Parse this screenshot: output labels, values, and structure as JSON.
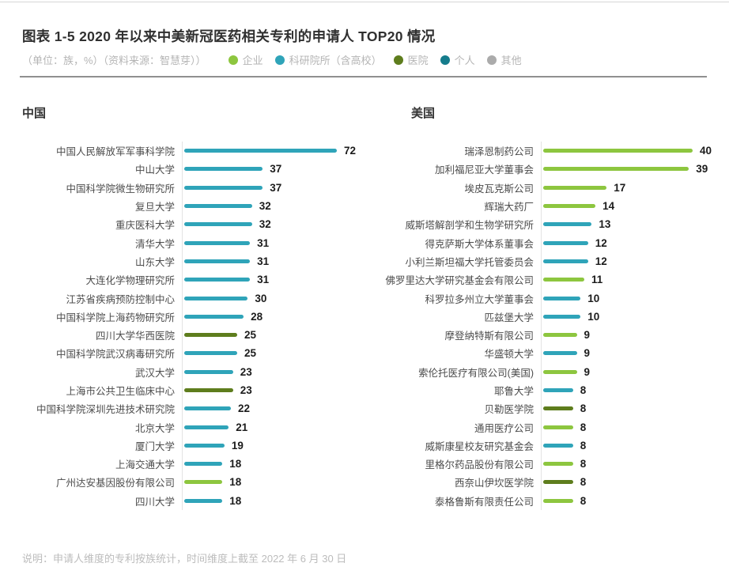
{
  "header": {
    "title": "图表 1-5 2020 年以来中美新冠医药相关专利的申请人 TOP20 情况",
    "subtitle": "（单位：族，%）（资料来源：智慧芽））",
    "legend": [
      {
        "category": "enterprise",
        "label": "企业",
        "color": "#8DC63F"
      },
      {
        "category": "research",
        "label": "科研院所（含高校）",
        "color": "#2FA4B9"
      },
      {
        "category": "hospital",
        "label": "医院",
        "color": "#5E7D1D"
      },
      {
        "category": "individual",
        "label": "个人",
        "color": "#157C8C"
      },
      {
        "category": "other",
        "label": "其他",
        "color": "#ABABAB"
      }
    ]
  },
  "chart_data": [
    {
      "type": "bar",
      "orientation": "horizontal",
      "region": "中国",
      "xlim": [
        0,
        80
      ],
      "grid": false,
      "legend_position": "top",
      "categories": [
        "中国人民解放军军事科学院",
        "中山大学",
        "中国科学院微生物研究所",
        "复旦大学",
        "重庆医科大学",
        "清华大学",
        "山东大学",
        "大连化学物理研究所",
        "江苏省疾病预防控制中心",
        "中国科学院上海药物研究所",
        "四川大学华西医院",
        "中国科学院武汉病毒研究所",
        "武汉大学",
        "上海市公共卫生临床中心",
        "中国科学院深圳先进技术研究院",
        "北京大学",
        "厦门大学",
        "上海交通大学",
        "广州达安基因股份有限公司",
        "四川大学"
      ],
      "values": [
        72,
        37,
        37,
        32,
        32,
        31,
        31,
        31,
        30,
        28,
        25,
        25,
        23,
        23,
        22,
        21,
        19,
        18,
        18,
        18
      ],
      "bar_categories": [
        "research",
        "research",
        "research",
        "research",
        "research",
        "research",
        "research",
        "research",
        "research",
        "research",
        "hospital",
        "research",
        "research",
        "hospital",
        "research",
        "research",
        "research",
        "research",
        "enterprise",
        "research"
      ]
    },
    {
      "type": "bar",
      "orientation": "horizontal",
      "region": "美国",
      "xlim": [
        0,
        44
      ],
      "grid": false,
      "legend_position": "top",
      "categories": [
        "瑞泽恩制药公司",
        "加利福尼亚大学董事会",
        "埃皮瓦克斯公司",
        "辉瑞大药厂",
        "威斯塔解剖学和生物学研究所",
        "得克萨斯大学体系董事会",
        "小利兰斯坦福大学托管委员会",
        "佛罗里达大学研究基金会有限公司",
        "科罗拉多州立大学董事会",
        "匹兹堡大学",
        "摩登纳特斯有限公司",
        "华盛顿大学",
        "索伦托医疗有限公司(美国)",
        "耶鲁大学",
        "贝勒医学院",
        "通用医疗公司",
        "威斯康星校友研究基金会",
        "里格尔药品股份有限公司",
        "西奈山伊坎医学院",
        "泰格鲁斯有限责任公司"
      ],
      "values": [
        40,
        39,
        17,
        14,
        13,
        12,
        12,
        11,
        10,
        10,
        9,
        9,
        9,
        8,
        8,
        8,
        8,
        8,
        8,
        8
      ],
      "bar_categories": [
        "enterprise",
        "enterprise",
        "enterprise",
        "enterprise",
        "research",
        "research",
        "research",
        "enterprise",
        "research",
        "research",
        "enterprise",
        "research",
        "enterprise",
        "research",
        "hospital",
        "enterprise",
        "research",
        "enterprise",
        "hospital",
        "enterprise"
      ]
    }
  ],
  "footer": {
    "note": "说明：申请人维度的专利按族统计，时间维度上截至 2022 年 6 月 30 日"
  }
}
